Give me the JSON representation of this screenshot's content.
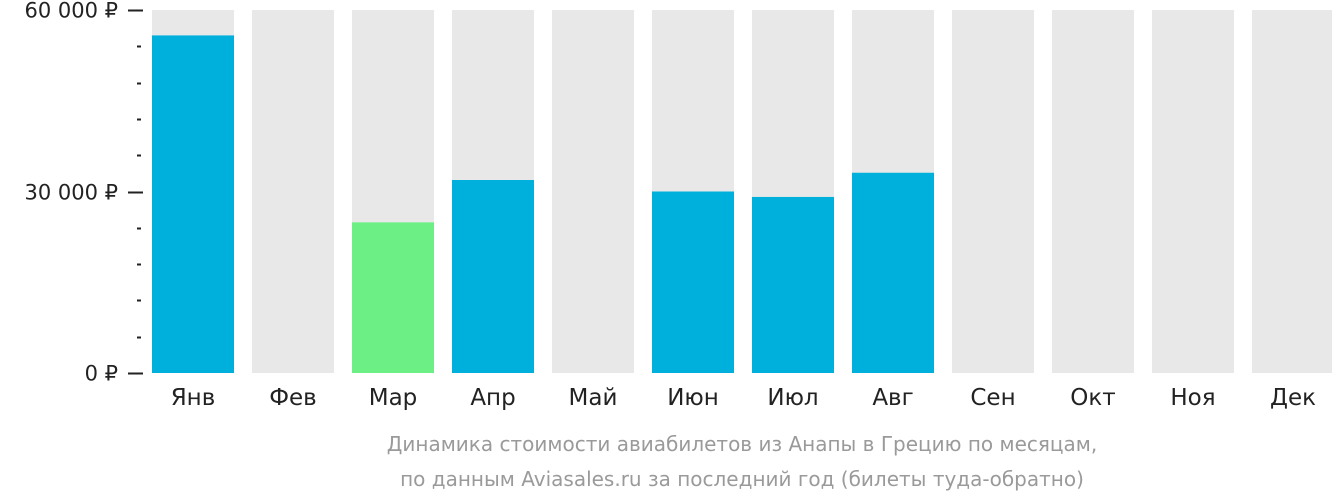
{
  "colors": {
    "bar_default": "#00b0dc",
    "bar_min": "#6cf086",
    "bar_background": "#e8e8e8",
    "axis": "#222222",
    "caption": "#9a9a9a"
  },
  "chart_data": {
    "type": "bar",
    "title": "Динамика стоимости авиабилетов из Анапы в Грецию по месяцам,",
    "subtitle": "по данным Aviasales.ru за последний год (билеты туда-обратно)",
    "xlabel": "",
    "ylabel": "",
    "ylim": [
      0,
      60000
    ],
    "yticks": [
      {
        "value": 0,
        "label": "0 ₽"
      },
      {
        "value": 30000,
        "label": "30 000 ₽"
      },
      {
        "value": 60000,
        "label": "60 000 ₽"
      }
    ],
    "minor_tick_step": 6000,
    "categories": [
      "Янв",
      "Фев",
      "Мар",
      "Апр",
      "Май",
      "Июн",
      "Июл",
      "Авг",
      "Сен",
      "Окт",
      "Ноя",
      "Дек"
    ],
    "values": [
      55800,
      null,
      24900,
      31900,
      null,
      30000,
      29100,
      33100,
      null,
      null,
      null,
      null
    ],
    "highlight_min_index": 2,
    "grid": false,
    "legend": "none"
  }
}
